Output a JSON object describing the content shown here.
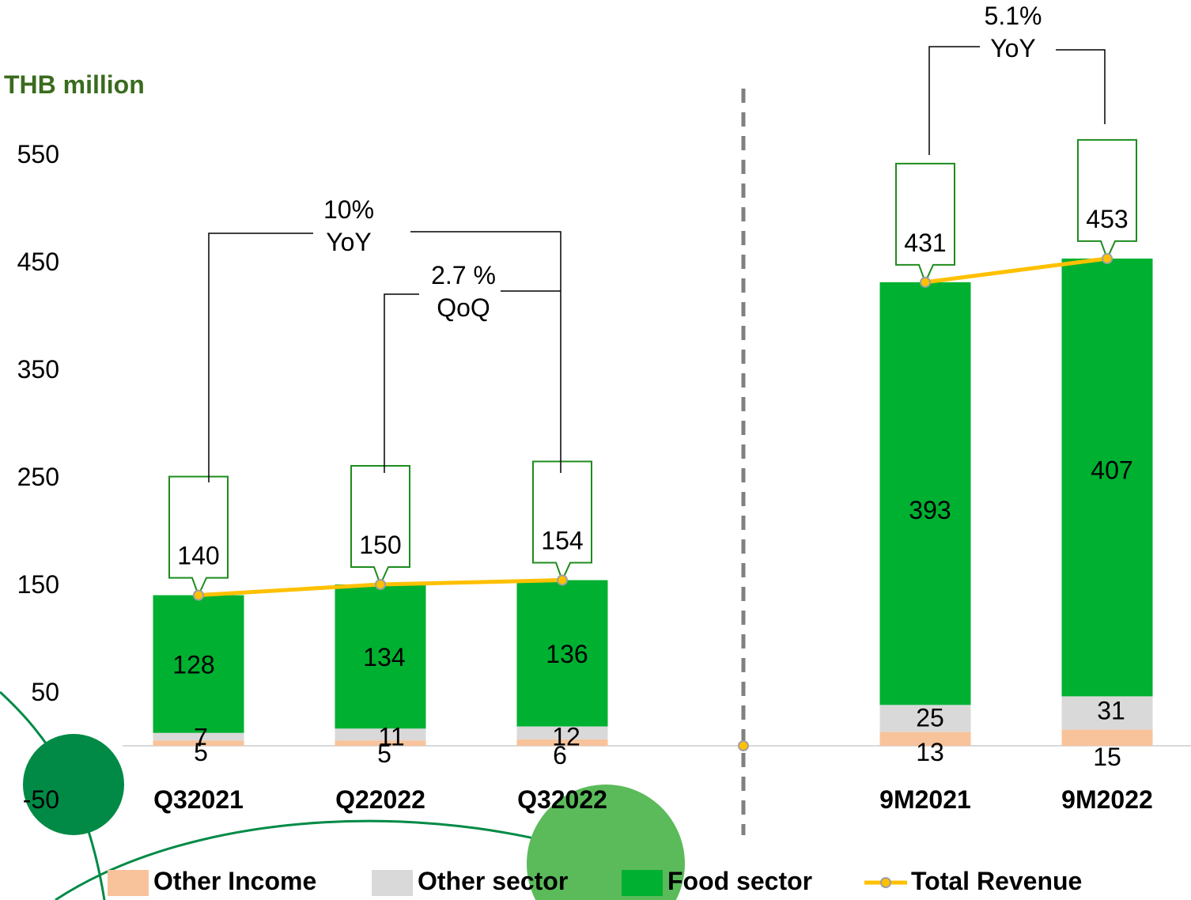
{
  "unit_label": "THB million",
  "colors": {
    "other_income": "#F8C39A",
    "other_sector": "#D9D9D9",
    "food_sector": "#00B030",
    "total_revenue": "#FFC000",
    "unit_label": "#3A6B1E",
    "callout_border": "#1E8C1E",
    "decor_dark": "#008A46",
    "decor_light": "#5BBB5A"
  },
  "annotations": {
    "yoy_quarter": {
      "line1": "10%",
      "line2": "YoY"
    },
    "qoq_quarter": {
      "line1": "2.7 %",
      "line2": "QoQ"
    },
    "yoy_9m": {
      "line1": "5.1%",
      "line2": "YoY"
    }
  },
  "legend": {
    "other_income": "Other Income",
    "other_sector": "Other sector",
    "food_sector": "Food sector",
    "total_revenue": "Total Revenue"
  },
  "chart_data": {
    "type": "bar",
    "stacked": true,
    "categories": [
      "Q32021",
      "Q22022",
      "Q32022",
      "9M2021",
      "9M2022"
    ],
    "series": [
      {
        "name": "Other Income",
        "values": [
          5,
          5,
          6,
          13,
          15
        ]
      },
      {
        "name": "Other sector",
        "values": [
          7,
          11,
          12,
          25,
          31
        ]
      },
      {
        "name": "Food sector",
        "values": [
          128,
          134,
          136,
          393,
          407
        ]
      }
    ],
    "line_series": {
      "name": "Total Revenue",
      "values": [
        140,
        150,
        154,
        431,
        453
      ]
    },
    "y_ticks": [
      "550",
      "450",
      "350",
      "250",
      "150",
      "50",
      "-50"
    ],
    "ylim": [
      -50,
      550
    ],
    "legend_position": "bottom"
  }
}
